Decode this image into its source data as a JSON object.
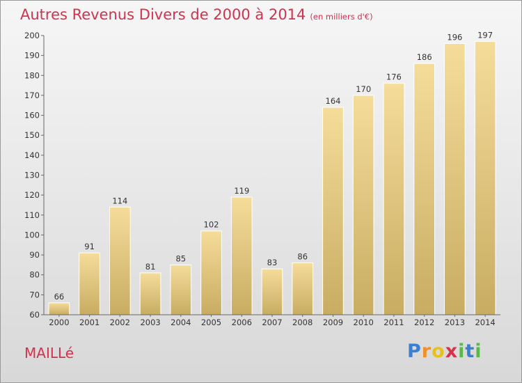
{
  "title": "Autres Revenus Divers de 2000 à 2014",
  "unit": "(en milliers d'€)",
  "commune": "MAILLé",
  "logo": {
    "letters": [
      "P",
      "r",
      "o",
      "x",
      "i",
      "t",
      "i"
    ],
    "colors": [
      "#3a7fd0",
      "#f0902a",
      "#e5c21e",
      "#d8324a",
      "#59b848",
      "#3a7fd0",
      "#59b848"
    ]
  },
  "colors": {
    "accent": "#d2324e",
    "bar_light": "#f5dc9a",
    "bar_dark": "#c8ac62"
  },
  "chart_data": {
    "type": "bar",
    "categories": [
      "2000",
      "2001",
      "2002",
      "2003",
      "2004",
      "2005",
      "2006",
      "2007",
      "2008",
      "2009",
      "2010",
      "2011",
      "2012",
      "2013",
      "2014"
    ],
    "values": [
      66,
      91,
      114,
      81,
      85,
      102,
      119,
      83,
      86,
      164,
      170,
      176,
      186,
      196,
      197
    ],
    "title": "Autres Revenus Divers de 2000 à 2014",
    "xlabel": "",
    "ylabel": "",
    "ylim": [
      60,
      200
    ],
    "yticks": [
      60,
      70,
      80,
      90,
      100,
      110,
      120,
      130,
      140,
      150,
      160,
      170,
      180,
      190,
      200
    ],
    "grid": false,
    "legend": "none"
  }
}
